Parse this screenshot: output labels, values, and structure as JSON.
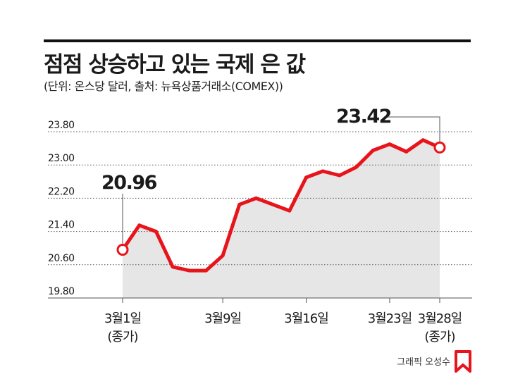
{
  "header": {
    "title": "점점 상승하고 있는 국제 은 값",
    "subtitle": "(단위: 온스당 달러, 출처: 뉴욕상품거래소(COMEX))"
  },
  "credit": "그래픽 오성수",
  "colors": {
    "line": "#e8141b",
    "area": "#e6e6e6",
    "grid": "#555555",
    "text": "#1a1a1a"
  },
  "chart_data": {
    "type": "area",
    "title": "점점 상승하고 있는 국제 은 값",
    "ylabel": "(단위: 온스당 달러, 출처: 뉴욕상품거래소(COMEX))",
    "xlabel": "",
    "ylim": [
      19.8,
      24.2
    ],
    "yticks": [
      "23.80",
      "23.00",
      "22.20",
      "21.40",
      "20.60",
      "19.80"
    ],
    "grid": "horizontal dotted",
    "legend": "none",
    "x_ticks": [
      {
        "label": "3월1일",
        "sub": "(종가)",
        "index": 0
      },
      {
        "label": "3월9일",
        "index": 6
      },
      {
        "label": "3월16일",
        "index": 11
      },
      {
        "label": "3월23일",
        "index": 16
      },
      {
        "label": "3월28일",
        "sub": "(종가)",
        "index": 19
      }
    ],
    "series": [
      {
        "values": [
          20.96,
          21.55,
          21.4,
          20.55,
          20.46,
          20.46,
          20.82,
          22.05,
          22.2,
          22.05,
          21.9,
          22.7,
          22.85,
          22.75,
          22.95,
          23.35,
          23.5,
          23.32,
          23.6,
          23.42
        ]
      }
    ],
    "annotations": [
      {
        "label": "20.96",
        "index": 0
      },
      {
        "label": "23.42",
        "index": 19
      }
    ]
  }
}
